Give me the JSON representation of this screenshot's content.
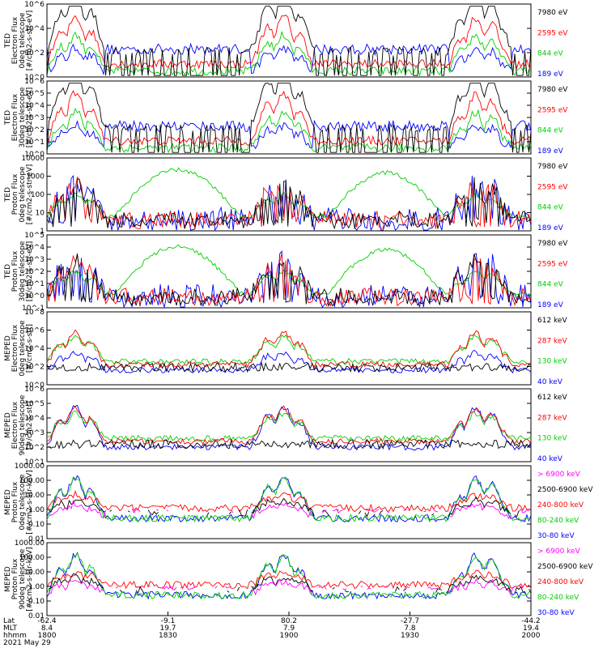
{
  "chart_data": {
    "type": "line",
    "date": "2021 May 29",
    "x_range": [
      "18:00",
      "20:00"
    ],
    "x_ticks": [
      {
        "hhmm": "1800",
        "lat": "-62.4",
        "mlt": "8.4"
      },
      {
        "hhmm": "1830",
        "lat": "-9.1",
        "mlt": "19.7"
      },
      {
        "hhmm": "1900",
        "lat": "80.2",
        "mlt": "7.9"
      },
      {
        "hhmm": "1930",
        "lat": "-27.7",
        "mlt": "7.8"
      },
      {
        "hhmm": "2000",
        "lat": "-44.2",
        "mlt": "19.4"
      }
    ],
    "row_labels": [
      "Lat",
      "MLT",
      "hhmm"
    ],
    "colors": {
      "black": "#000000",
      "red": "#ff0000",
      "green": "#00d000",
      "blue": "#0000ff",
      "magenta": "#ff00ff"
    },
    "panels": [
      {
        "ylabel": [
          "TED",
          "Electron Flux",
          "0deg telescope",
          "[#/cm2-s-str-eV]"
        ],
        "yscale": "log",
        "yticks": [
          "10^0",
          "10^2",
          "10^4",
          "10^6"
        ],
        "legend": [
          {
            "label": "7980 eV",
            "color": "black"
          },
          {
            "label": "2595 eV",
            "color": "red"
          },
          {
            "label": "844 eV",
            "color": "green"
          },
          {
            "label": "189 eV",
            "color": "blue"
          }
        ]
      },
      {
        "ylabel": [
          "TED",
          "Electron Flux",
          "30deg telescope",
          "[#/cm2-s-str-eV]"
        ],
        "yscale": "log",
        "yticks": [
          "10^0",
          "10^1",
          "10^2",
          "10^3",
          "10^4",
          "10^5",
          "10^6"
        ],
        "legend": [
          {
            "label": "7980 eV",
            "color": "black"
          },
          {
            "label": "2595 eV",
            "color": "red"
          },
          {
            "label": "844 eV",
            "color": "green"
          },
          {
            "label": "189 eV",
            "color": "blue"
          }
        ]
      },
      {
        "ylabel": [
          "TED",
          "Proton Flux",
          "0deg telescope",
          "[#/cm2-s-str-eV]"
        ],
        "yscale": "log",
        "yticks": [
          "1",
          "10",
          "100",
          "1000",
          "10000"
        ],
        "legend": [
          {
            "label": "7980 eV",
            "color": "black"
          },
          {
            "label": "2595 eV",
            "color": "red"
          },
          {
            "label": "844 eV",
            "color": "green"
          },
          {
            "label": "189 eV",
            "color": "blue"
          }
        ]
      },
      {
        "ylabel": [
          "TED",
          "Proton Flux",
          "30deg telescope",
          "[#/cm2-s-str-eV]"
        ],
        "yscale": "log",
        "yticks": [
          "10^-1",
          "10^0",
          "10^1",
          "10^2",
          "10^3",
          "10^4",
          "10^5"
        ],
        "legend": [
          {
            "label": "7980 eV",
            "color": "black"
          },
          {
            "label": "2595 eV",
            "color": "red"
          },
          {
            "label": "844 eV",
            "color": "green"
          },
          {
            "label": "189 eV",
            "color": "blue"
          }
        ]
      },
      {
        "ylabel": [
          "MEPED",
          "Electron Flux",
          "0deg telescope",
          "[#/cm2-s-str]"
        ],
        "yscale": "log",
        "yticks": [
          "10^0",
          "10^2",
          "10^4",
          "10^6",
          "10^8"
        ],
        "legend": [
          {
            "label": "612 keV",
            "color": "black"
          },
          {
            "label": "287 keV",
            "color": "red"
          },
          {
            "label": "130 keV",
            "color": "green"
          },
          {
            "label": "40 keV",
            "color": "blue"
          }
        ]
      },
      {
        "ylabel": [
          "MEPED",
          "Electron Flux",
          "90deg telescope",
          "[#/cm2-s-str]"
        ],
        "yscale": "log",
        "yticks": [
          "10^1",
          "10^2",
          "10^3",
          "10^4",
          "10^5",
          "10^6"
        ],
        "legend": [
          {
            "label": "612 keV",
            "color": "black"
          },
          {
            "label": "287 keV",
            "color": "red"
          },
          {
            "label": "130 keV",
            "color": "green"
          },
          {
            "label": "40 keV",
            "color": "blue"
          }
        ]
      },
      {
        "ylabel": [
          "MEPED",
          "Proton Flux",
          "0deg telescope",
          "[#/cm2-s-str-keV]"
        ],
        "yscale": "log",
        "yticks": [
          "0.01",
          "0.10",
          "1.00",
          "10.00",
          "100.00",
          "1000.00"
        ],
        "legend": [
          {
            "label": "> 6900 keV",
            "color": "magenta"
          },
          {
            "label": "2500-6900 keV",
            "color": "black"
          },
          {
            "label": "240-800 keV",
            "color": "red"
          },
          {
            "label": "80-240 keV",
            "color": "green"
          },
          {
            "label": "30-80 keV",
            "color": "blue"
          }
        ]
      },
      {
        "ylabel": [
          "MEPED",
          "Proton Flux",
          "90deg telescope",
          "[#/cm2-s-str-keV]"
        ],
        "yscale": "log",
        "yticks": [
          "0.01",
          "0.10",
          "1.00",
          "10.00",
          "100.00",
          "1000.00"
        ],
        "legend": [
          {
            "label": "> 6900 keV",
            "color": "magenta"
          },
          {
            "label": "2500-6900 keV",
            "color": "black"
          },
          {
            "label": "240-800 keV",
            "color": "red"
          },
          {
            "label": "80-240 keV",
            "color": "green"
          },
          {
            "label": "30-80 keV",
            "color": "blue"
          }
        ]
      }
    ]
  }
}
